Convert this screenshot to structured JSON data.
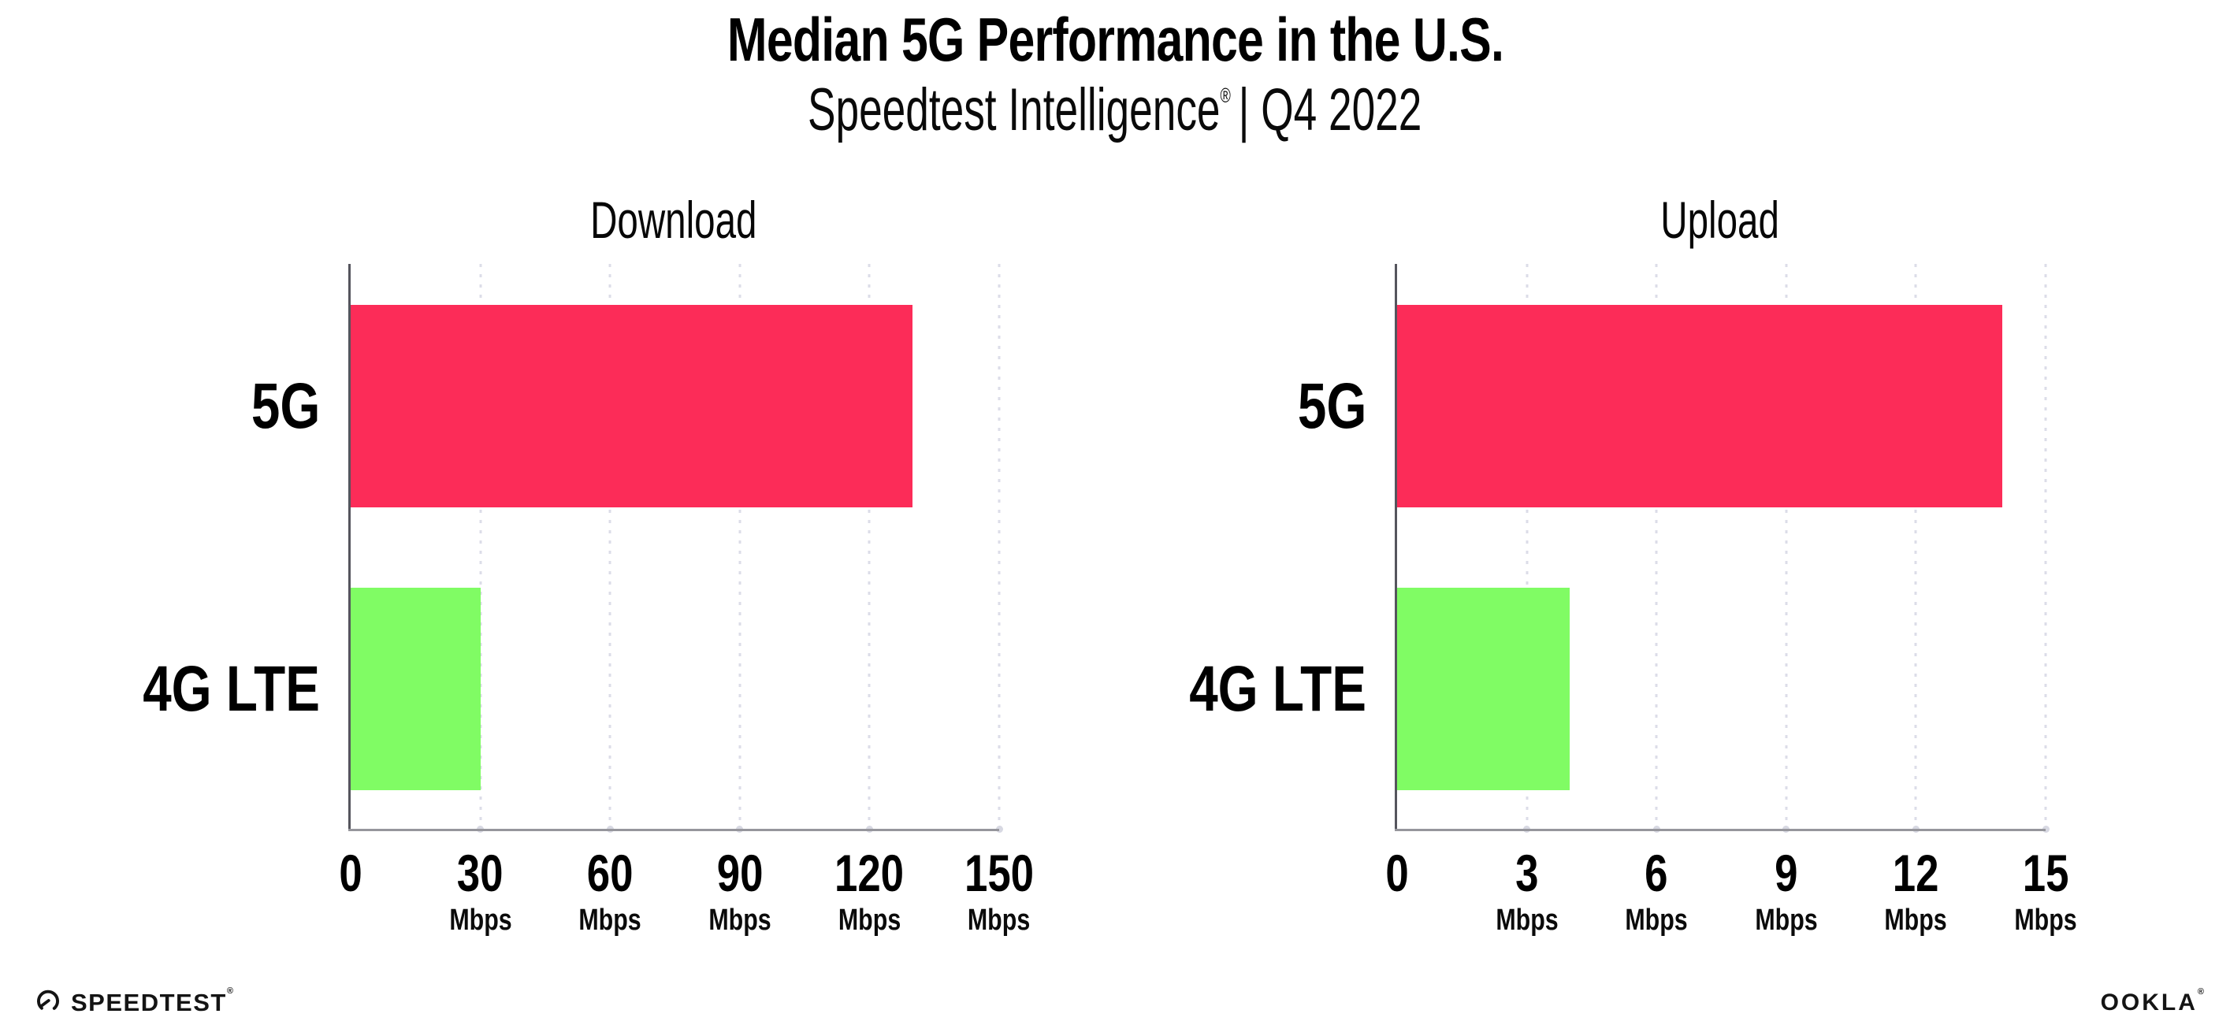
{
  "header": {
    "title": "Median 5G Performance in the U.S.",
    "subtitle_brand": "Speedtest Intelligence",
    "subtitle_reg": "®",
    "subtitle_rest": "| Q4 2022"
  },
  "chart_data": [
    {
      "type": "bar",
      "orientation": "horizontal",
      "title": "Download",
      "categories": [
        "5G",
        "4G LTE"
      ],
      "values": [
        130,
        30
      ],
      "unit": "Mbps",
      "xlim": [
        0,
        150
      ],
      "xticks": [
        "0",
        "30",
        "60",
        "90",
        "120",
        "150"
      ],
      "grid": "vertical-dotted",
      "legend": "none",
      "bar_colors": [
        "#fc2c58",
        "#80fc64"
      ]
    },
    {
      "type": "bar",
      "orientation": "horizontal",
      "title": "Upload",
      "categories": [
        "5G",
        "4G LTE"
      ],
      "values": [
        14,
        4
      ],
      "unit": "Mbps",
      "xlim": [
        0,
        15
      ],
      "xticks": [
        "0",
        "3",
        "6",
        "9",
        "12",
        "15"
      ],
      "grid": "vertical-dotted",
      "legend": "none",
      "bar_colors": [
        "#fc2c58",
        "#80fc64"
      ]
    }
  ],
  "footer": {
    "speedtest_label": "SPEEDTEST",
    "speedtest_mark": "®",
    "ookla_label": "OOKLA",
    "ookla_mark": "®"
  },
  "colors": {
    "bar_5g": "#fc2c58",
    "bar_4g_lte": "#80fc64",
    "axis_line": "#96969c",
    "axis_spine": "#55555d",
    "gridline": "#dcdde8",
    "text": "#000000"
  }
}
